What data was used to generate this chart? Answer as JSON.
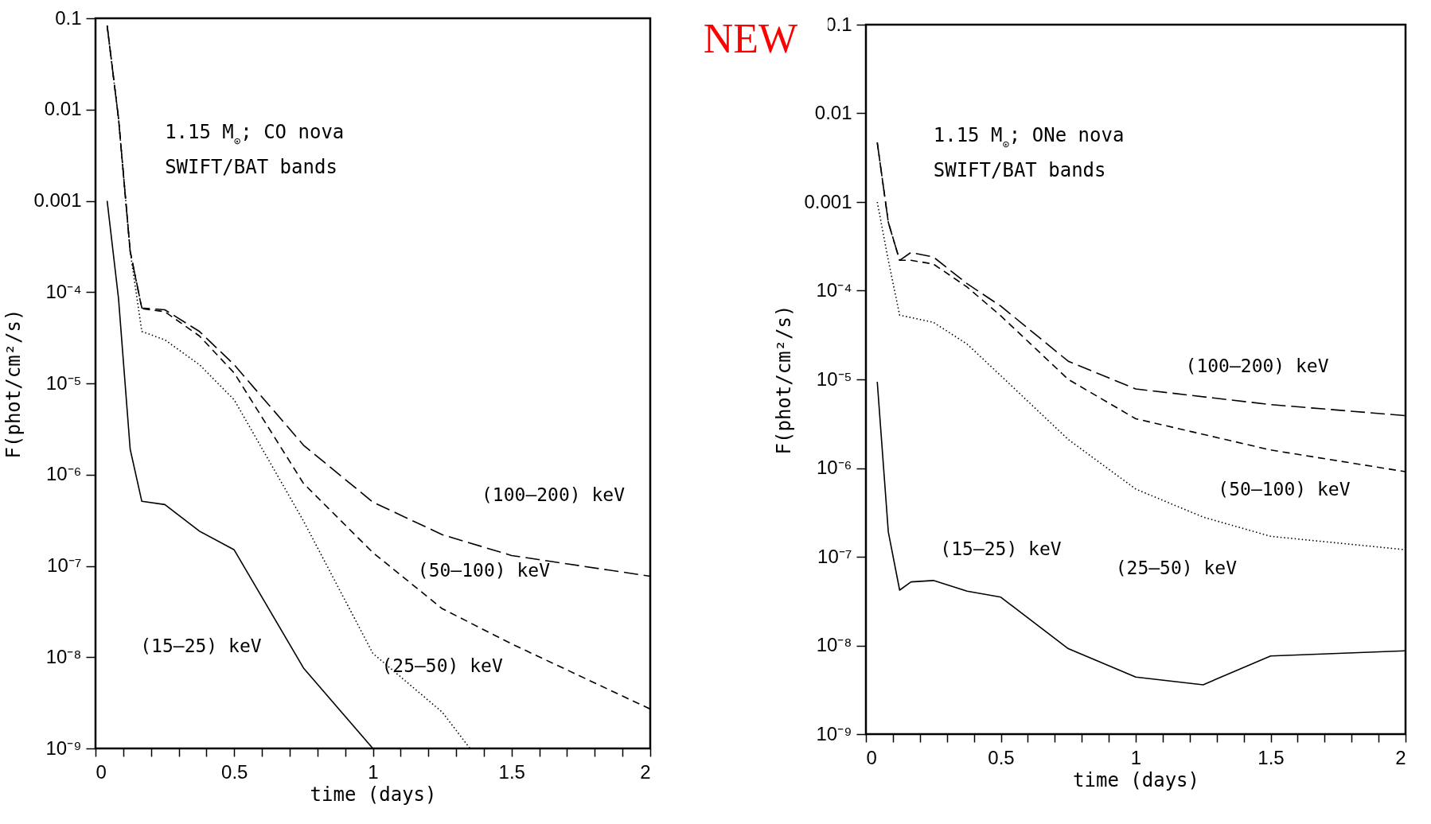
{
  "chart_data": [
    {
      "type": "line",
      "xlabel": "time (days)",
      "ylabel": "F(phot/cm²/s)",
      "log": "y",
      "xlim": [
        0,
        2
      ],
      "ylim": [
        1e-09,
        0.1
      ],
      "xticks": [
        0,
        {
          "value": 0.1,
          "label": null
        },
        {
          "value": 0.2,
          "label": null
        },
        {
          "value": 0.3,
          "label": null
        },
        {
          "value": 0.4,
          "label": null
        },
        0.5,
        {
          "value": 0.6,
          "label": null
        },
        {
          "value": 0.7,
          "label": null
        },
        {
          "value": 0.8,
          "label": null
        },
        {
          "value": 0.9,
          "label": null
        },
        1,
        {
          "value": 1.1,
          "label": null
        },
        {
          "value": 1.2,
          "label": null
        },
        {
          "value": 1.3,
          "label": null
        },
        {
          "value": 1.4,
          "label": null
        },
        1.5,
        {
          "value": 1.6,
          "label": null
        },
        {
          "value": 1.7,
          "label": null
        },
        {
          "value": 1.8,
          "label": null
        },
        {
          "value": 1.9,
          "label": null
        },
        2
      ],
      "yticks": [
        {
          "value": 1e-09,
          "label": "10⁻⁹"
        },
        {
          "value": 1e-08,
          "label": "10⁻⁸"
        },
        {
          "value": 1e-07,
          "label": "10⁻⁷"
        },
        {
          "value": 1e-06,
          "label": "10⁻⁶"
        },
        {
          "value": 1e-05,
          "label": "10⁻⁵"
        },
        {
          "value": 0.0001,
          "label": "10⁻⁴"
        },
        0.001,
        0.01,
        0.1
      ],
      "annotations": [
        "1.15 M$_{⊙}$; CO nova",
        "SWIFT/BAT bands"
      ],
      "series": [
        {
          "name": "(15–25) keV",
          "color": "#000000",
          "line_style": "solid",
          "x": [
            0.042,
            0.083,
            0.125,
            0.167,
            0.25,
            0.375,
            0.5,
            0.75,
            1.0
          ],
          "values": [
            0.001,
            8.5e-05,
            1.9e-06,
            5.1e-07,
            4.7e-07,
            2.4e-07,
            1.5e-07,
            7.6e-09,
            1e-09
          ]
        },
        {
          "name": "(25–50) keV",
          "color": "#000000",
          "line_style": "dotted",
          "x": [
            0.042,
            0.083,
            0.125,
            0.167,
            0.25,
            0.375,
            0.5,
            0.75,
            1.0,
            1.25,
            1.35
          ],
          "values": [
            0.083,
            0.008,
            0.00028,
            3.7e-05,
            3e-05,
            1.6e-05,
            6.6e-06,
            3.1e-07,
            1.1e-08,
            2.5e-09,
            1e-09
          ]
        },
        {
          "name": "(50–100) keV",
          "color": "#000000",
          "line_style": "dashed",
          "x": [
            0.042,
            0.083,
            0.125,
            0.167,
            0.25,
            0.375,
            0.5,
            0.75,
            1.0,
            1.25,
            1.5,
            2.0
          ],
          "values": [
            0.083,
            0.008,
            0.00028,
            6.6e-05,
            6.1e-05,
            3.3e-05,
            1.3e-05,
            8e-07,
            1.4e-07,
            3.4e-08,
            1.4e-08,
            2.7e-09
          ]
        },
        {
          "name": "(100–200) keV",
          "color": "#000000",
          "line_style": "dashed",
          "x": [
            0.042,
            0.083,
            0.125,
            0.167,
            0.25,
            0.375,
            0.5,
            0.75,
            1.0,
            1.25,
            1.5,
            2.0
          ],
          "values": [
            0.083,
            0.008,
            0.00028,
            6.7e-05,
            6.4e-05,
            3.7e-05,
            1.6e-05,
            2.1e-06,
            5e-07,
            2.2e-07,
            1.3e-07,
            7.7e-08
          ]
        }
      ]
    },
    {
      "type": "other",
      "annotations": [
        "NEW"
      ]
    },
    {
      "type": "line",
      "xlabel": "time (days)",
      "ylabel": "F(phot/cm²/s)",
      "log": "y",
      "xlim": [
        0,
        2
      ],
      "ylim": [
        1e-09,
        0.1
      ],
      "xticks": [
        0,
        {
          "value": 0.1,
          "label": null
        },
        {
          "value": 0.2,
          "label": null
        },
        {
          "value": 0.3,
          "label": null
        },
        {
          "value": 0.4,
          "label": null
        },
        0.5,
        {
          "value": 0.6,
          "label": null
        },
        {
          "value": 0.7,
          "label": null
        },
        {
          "value": 0.8,
          "label": null
        },
        {
          "value": 0.9,
          "label": null
        },
        1,
        {
          "value": 1.1,
          "label": null
        },
        {
          "value": 1.2,
          "label": null
        },
        {
          "value": 1.3,
          "label": null
        },
        {
          "value": 1.4,
          "label": null
        },
        1.5,
        {
          "value": 1.6,
          "label": null
        },
        {
          "value": 1.7,
          "label": null
        },
        {
          "value": 1.8,
          "label": null
        },
        {
          "value": 1.9,
          "label": null
        },
        2
      ],
      "yticks": [
        {
          "value": 1e-09,
          "label": "10⁻⁹"
        },
        {
          "value": 1e-08,
          "label": "10⁻⁸"
        },
        {
          "value": 1e-07,
          "label": "10⁻⁷"
        },
        {
          "value": 1e-06,
          "label": "10⁻⁶"
        },
        {
          "value": 1e-05,
          "label": "10⁻⁵"
        },
        {
          "value": 0.0001,
          "label": "10⁻⁴"
        },
        0.001,
        0.01,
        0.1
      ],
      "annotations": [
        "1.15 M$_{⊙}$; ONe nova",
        "SWIFT/BAT bands"
      ],
      "series": [
        {
          "name": "(15–25) keV",
          "color": "#000000",
          "line_style": "solid",
          "x": [
            0.042,
            0.083,
            0.125,
            0.167,
            0.25,
            0.375,
            0.5,
            0.75,
            1.0,
            1.25,
            1.5,
            2.0
          ],
          "values": [
            9.4e-06,
            1.9e-07,
            4.2e-08,
            5.2e-08,
            5.4e-08,
            4.1e-08,
            3.5e-08,
            9.2e-09,
            4.4e-09,
            3.6e-09,
            7.6e-09,
            8.7e-09
          ]
        },
        {
          "name": "(25–50) keV",
          "color": "#000000",
          "line_style": "dotted",
          "x": [
            0.042,
            0.083,
            0.125,
            0.25,
            0.375,
            0.5,
            0.75,
            1.0,
            1.25,
            1.5,
            2.0
          ],
          "values": [
            0.001,
            0.00022,
            5.3e-05,
            4.4e-05,
            2.5e-05,
            1.1e-05,
            2.1e-06,
            5.8e-07,
            2.8e-07,
            1.7e-07,
            1.2e-07
          ]
        },
        {
          "name": "(50–100) keV",
          "color": "#000000",
          "line_style": "dashed",
          "x": [
            0.042,
            0.083,
            0.125,
            0.167,
            0.25,
            0.375,
            0.5,
            0.75,
            1.0,
            1.5,
            2.0
          ],
          "values": [
            0.0047,
            0.00059,
            0.00022,
            0.00022,
            0.0002,
            0.00011,
            5.2e-05,
            1e-05,
            3.6e-06,
            1.6e-06,
            9.1e-07
          ]
        },
        {
          "name": "(100–200) keV",
          "color": "#000000",
          "line_style": "dashed",
          "x": [
            0.042,
            0.083,
            0.125,
            0.167,
            0.25,
            0.375,
            0.5,
            0.75,
            1.0,
            1.5,
            2.0
          ],
          "values": [
            0.0047,
            0.00059,
            0.00022,
            0.00027,
            0.00024,
            0.00012,
            6.7e-05,
            1.6e-05,
            7.8e-06,
            5.2e-06,
            3.9e-06
          ]
        }
      ]
    }
  ]
}
